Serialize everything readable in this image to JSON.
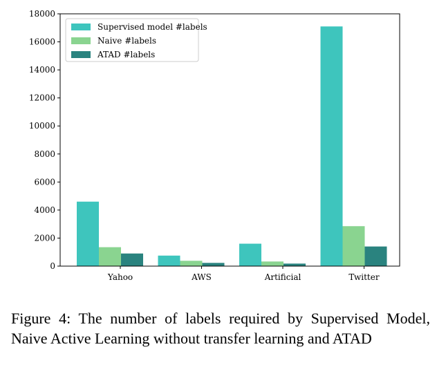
{
  "chart_data": {
    "type": "bar",
    "categories": [
      "Yahoo",
      "AWS",
      "Artificial",
      "Twitter"
    ],
    "series": [
      {
        "name": "Supervised model #labels",
        "color": "#3ec5bd",
        "values": [
          4600,
          750,
          1600,
          17100
        ]
      },
      {
        "name": "Naive #labels",
        "color": "#8ad490",
        "values": [
          1350,
          380,
          330,
          2850
        ]
      },
      {
        "name": "ATAD #labels",
        "color": "#2a837f",
        "values": [
          900,
          230,
          180,
          1400
        ]
      }
    ],
    "ylim": [
      0,
      18000
    ],
    "yticks": [
      0,
      2000,
      4000,
      6000,
      8000,
      10000,
      12000,
      14000,
      16000,
      18000
    ],
    "legend_position": "top-left",
    "grid": false
  },
  "caption": "Figure 4:  The number of labels required by Supervised Model, Naive Active Learning without transfer learning and ATAD"
}
